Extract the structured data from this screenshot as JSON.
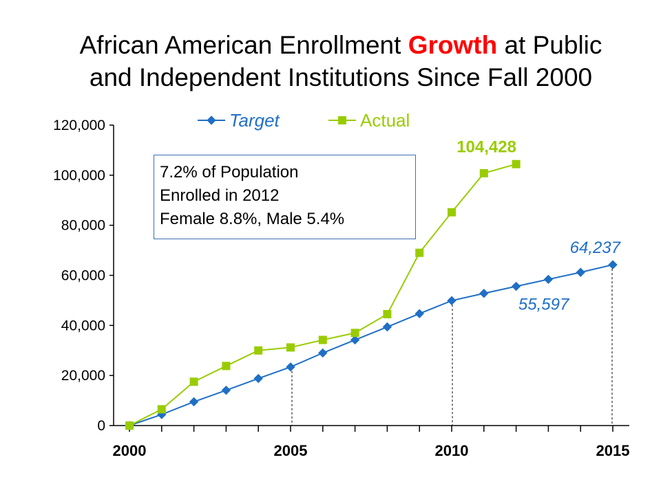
{
  "title": {
    "part1": "African American Enrollment ",
    "accent": "Growth",
    "part2": " at Public",
    "line2": "and Independent Institutions Since Fall 2000"
  },
  "colors": {
    "target": "#1f6fc5",
    "actual": "#99cc00",
    "title_accent": "#ff0000",
    "box_border": "#3a6fb0"
  },
  "info_box": {
    "line1": "7.2% of Population",
    "line2": "Enrolled in 2012",
    "line3": "Female 8.8%, Male 5.4%"
  },
  "chart_data": {
    "type": "line",
    "title": "African American Enrollment Growth at Public and Independent Institutions Since Fall 2000",
    "xlabel": "",
    "ylabel": "",
    "xlim": [
      2000,
      2015
    ],
    "ylim": [
      0,
      120000
    ],
    "x_ticks": [
      "2000",
      "2005",
      "2010",
      "2015"
    ],
    "y_ticks": [
      "0",
      "20,000",
      "40,000",
      "60,000",
      "80,000",
      "100,000",
      "120,000"
    ],
    "grid": false,
    "legend": "top",
    "series": [
      {
        "name": "Target",
        "marker": "diamond",
        "x": [
          2000,
          2001,
          2002,
          2003,
          2004,
          2005,
          2006,
          2007,
          2008,
          2009,
          2010,
          2011,
          2012,
          2013,
          2014,
          2015
        ],
        "values": [
          0,
          4400,
          9500,
          14100,
          18800,
          23400,
          29000,
          34200,
          39400,
          44700,
          49900,
          52800,
          55597,
          58400,
          61200,
          64237
        ]
      },
      {
        "name": "Actual",
        "marker": "square",
        "x": [
          2000,
          2001,
          2002,
          2003,
          2004,
          2005,
          2006,
          2007,
          2008,
          2009,
          2010,
          2011,
          2012
        ],
        "values": [
          0,
          6500,
          17500,
          23800,
          30000,
          31200,
          34200,
          37000,
          44500,
          69000,
          85200,
          100800,
          104428
        ]
      }
    ],
    "annotations": [
      {
        "text": "104,428",
        "series": "Actual",
        "x": 2012
      },
      {
        "text": "64,237",
        "series": "Target",
        "x": 2015
      },
      {
        "text": "55,597",
        "series": "Target",
        "x": 2012
      }
    ],
    "dotted_droplines_x": [
      2005,
      2010,
      2015
    ]
  }
}
